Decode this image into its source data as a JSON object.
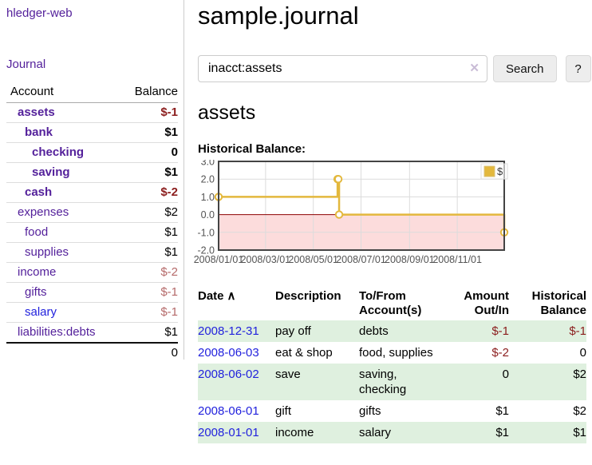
{
  "sidebar": {
    "app_title": "hledger-web",
    "journal_link": "Journal",
    "accounts_table": {
      "headers": [
        "Account",
        "Balance"
      ],
      "rows": [
        {
          "account": "assets",
          "balance": "$-1",
          "indent": 1,
          "bold": true,
          "balance_color": "negative"
        },
        {
          "account": "bank",
          "balance": "$1",
          "indent": 2,
          "bold": true,
          "balance_color": "normal"
        },
        {
          "account": "checking",
          "balance": "0",
          "indent": 3,
          "bold": true,
          "balance_color": "normal"
        },
        {
          "account": "saving",
          "balance": "$1",
          "indent": 3,
          "bold": true,
          "balance_color": "normal"
        },
        {
          "account": "cash",
          "balance": "$-2",
          "indent": 2,
          "bold": true,
          "balance_color": "negative"
        },
        {
          "account": "expenses",
          "balance": "$2",
          "indent": 1,
          "bold": false,
          "balance_color": "normal"
        },
        {
          "account": "food",
          "balance": "$1",
          "indent": 2,
          "bold": false,
          "balance_color": "normal"
        },
        {
          "account": "supplies",
          "balance": "$1",
          "indent": 2,
          "bold": false,
          "balance_color": "normal"
        },
        {
          "account": "income",
          "balance": "$-2",
          "indent": 1,
          "bold": false,
          "balance_color": "negative-soft"
        },
        {
          "account": "gifts",
          "balance": "$-1",
          "indent": 2,
          "bold": false,
          "balance_color": "negative-soft"
        },
        {
          "account": "salary",
          "balance": "$-1",
          "indent": 2,
          "bold": false,
          "balance_color": "negative-soft",
          "link_color": "blue"
        },
        {
          "account": "liabilities:debts",
          "balance": "$1",
          "indent": 1,
          "bold": false,
          "balance_color": "normal"
        }
      ],
      "total": "0"
    }
  },
  "main": {
    "title": "sample.journal",
    "search": {
      "value": "inacct:assets",
      "clear_icon": "✕",
      "button_label": "Search",
      "help_label": "?"
    },
    "section_title": "assets",
    "chart_label": "Historical Balance:",
    "register_table": {
      "columns": [
        {
          "label": "Date",
          "sort": "∧",
          "align": "left"
        },
        {
          "label": "Description",
          "align": "left"
        },
        {
          "label": "To/From Account(s)",
          "align": "left"
        },
        {
          "label": "Amount Out/In",
          "align": "right"
        },
        {
          "label": "Historical Balance",
          "align": "right"
        }
      ],
      "rows": [
        {
          "date": "2008-12-31",
          "description": "pay off",
          "accounts": "debts",
          "amount": "$-1",
          "balance": "$-1",
          "amount_color": "negative",
          "balance_color": "negative"
        },
        {
          "date": "2008-06-03",
          "description": "eat & shop",
          "accounts": "food, supplies",
          "amount": "$-2",
          "balance": "0",
          "amount_color": "negative",
          "balance_color": "normal"
        },
        {
          "date": "2008-06-02",
          "description": "save",
          "accounts": "saving, checking",
          "amount": "0",
          "balance": "$2",
          "amount_color": "normal",
          "balance_color": "normal"
        },
        {
          "date": "2008-06-01",
          "description": "gift",
          "accounts": "gifts",
          "amount": "$1",
          "balance": "$2",
          "amount_color": "normal",
          "balance_color": "normal"
        },
        {
          "date": "2008-01-01",
          "description": "income",
          "accounts": "salary",
          "amount": "$1",
          "balance": "$1",
          "amount_color": "normal",
          "balance_color": "normal"
        }
      ]
    }
  },
  "chart_data": {
    "type": "line",
    "title": "Historical Balance",
    "step": true,
    "series": [
      {
        "name": "$",
        "color": "#e3b83d",
        "points": [
          [
            "2008-01-01",
            1
          ],
          [
            "2008-06-01",
            2
          ],
          [
            "2008-06-02",
            2
          ],
          [
            "2008-06-03",
            0
          ],
          [
            "2008-12-31",
            -1
          ]
        ]
      }
    ],
    "xlim": [
      "2008-01-01",
      "2008-12-31"
    ],
    "ylim": [
      -2,
      3
    ],
    "x_ticks": [
      "2008/01/01",
      "2008/03/01",
      "2008/05/01",
      "2008/07/01",
      "2008/09/01",
      "2008/11/01"
    ],
    "y_ticks": [
      3.0,
      2.0,
      1.0,
      0.0,
      -1.0,
      -2.0
    ],
    "legend": {
      "label": "$",
      "position": "top-right"
    },
    "grid": true,
    "negative_region_color": "#fcdcdc",
    "zero_line_color": "#8b0000",
    "tick_label_color": "#545454",
    "border_color": "#444444"
  }
}
